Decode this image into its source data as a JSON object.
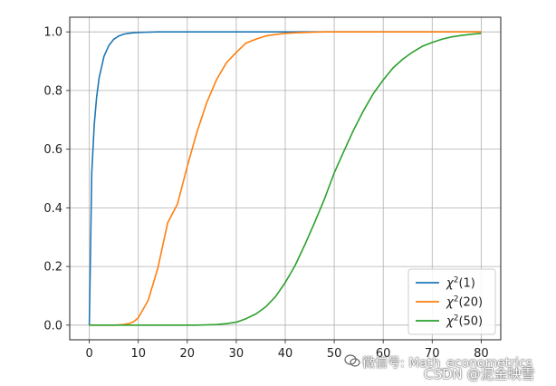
{
  "chart_data": {
    "type": "line",
    "title": "",
    "xlabel": "",
    "ylabel": "",
    "xlim": [
      -4,
      84
    ],
    "ylim": [
      -0.05,
      1.05
    ],
    "xticks": [
      0,
      10,
      20,
      30,
      40,
      50,
      60,
      70,
      80
    ],
    "yticks": [
      0.0,
      0.2,
      0.4,
      0.6,
      0.8,
      1.0
    ],
    "xtick_labels": [
      "0",
      "10",
      "20",
      "30",
      "40",
      "50",
      "60",
      "70",
      "80"
    ],
    "ytick_labels": [
      "0.0",
      "0.2",
      "0.4",
      "0.6",
      "0.8",
      "1.0"
    ],
    "grid": true,
    "legend_position": "bottom-right",
    "x": [
      0,
      0.5,
      1,
      1.5,
      2,
      3,
      4,
      5,
      6,
      7,
      8,
      9,
      10,
      12,
      14,
      16,
      18,
      20,
      22,
      24,
      26,
      28,
      30,
      32,
      34,
      36,
      38,
      40,
      42,
      44,
      46,
      48,
      50,
      52,
      54,
      56,
      58,
      60,
      62,
      64,
      66,
      68,
      70,
      72,
      74,
      76,
      78,
      80
    ],
    "series": [
      {
        "name": "χ²(1)",
        "legend_base": "χ",
        "legend_sup": "2",
        "legend_arg": "(1)",
        "color": "#1f77b4",
        "values": [
          0,
          0.52,
          0.683,
          0.779,
          0.843,
          0.917,
          0.954,
          0.975,
          0.986,
          0.992,
          0.995,
          0.997,
          0.998,
          0.999,
          1.0,
          1.0,
          1.0,
          1.0,
          1.0,
          1.0,
          1.0,
          1.0,
          1.0,
          1.0,
          1.0,
          1.0,
          1.0,
          1.0,
          1.0,
          1.0,
          1.0,
          1.0,
          1.0,
          1.0,
          1.0,
          1.0,
          1.0,
          1.0,
          1.0,
          1.0,
          1.0,
          1.0,
          1.0,
          1.0,
          1.0,
          1.0,
          1.0,
          1.0
        ]
      },
      {
        "name": "χ²(20)",
        "legend_base": "χ",
        "legend_sup": "2",
        "legend_arg": "(20)",
        "color": "#ff7f0e",
        "values": [
          0,
          0,
          0,
          0,
          0,
          0,
          0,
          0,
          0.001,
          0.002,
          0.005,
          0.011,
          0.025,
          0.084,
          0.195,
          0.349,
          0.413,
          0.542,
          0.66,
          0.76,
          0.838,
          0.895,
          0.93,
          0.962,
          0.975,
          0.986,
          0.991,
          0.995,
          0.997,
          0.998,
          0.999,
          1.0,
          1.0,
          1.0,
          1.0,
          1.0,
          1.0,
          1.0,
          1.0,
          1.0,
          1.0,
          1.0,
          1.0,
          1.0,
          1.0,
          1.0,
          1.0,
          1.0
        ]
      },
      {
        "name": "χ²(50)",
        "legend_base": "χ",
        "legend_sup": "2",
        "legend_arg": "(50)",
        "color": "#2ca02c",
        "values": [
          0,
          0,
          0,
          0,
          0,
          0,
          0,
          0,
          0,
          0,
          0,
          0,
          0,
          0,
          0,
          0,
          0,
          0,
          0,
          0.001,
          0.002,
          0.005,
          0.01,
          0.022,
          0.038,
          0.062,
          0.097,
          0.145,
          0.203,
          0.274,
          0.35,
          0.43,
          0.519,
          0.594,
          0.667,
          0.732,
          0.79,
          0.836,
          0.877,
          0.907,
          0.931,
          0.951,
          0.964,
          0.975,
          0.983,
          0.988,
          0.992,
          0.995
        ]
      }
    ]
  },
  "watermark": {
    "line1": "微信号: Math_econometrics",
    "line2": "CSDN @泥金映雪"
  },
  "colors": {
    "axes": "#222222",
    "grid": "#b0b0b0",
    "legend_border": "#cccccc"
  }
}
